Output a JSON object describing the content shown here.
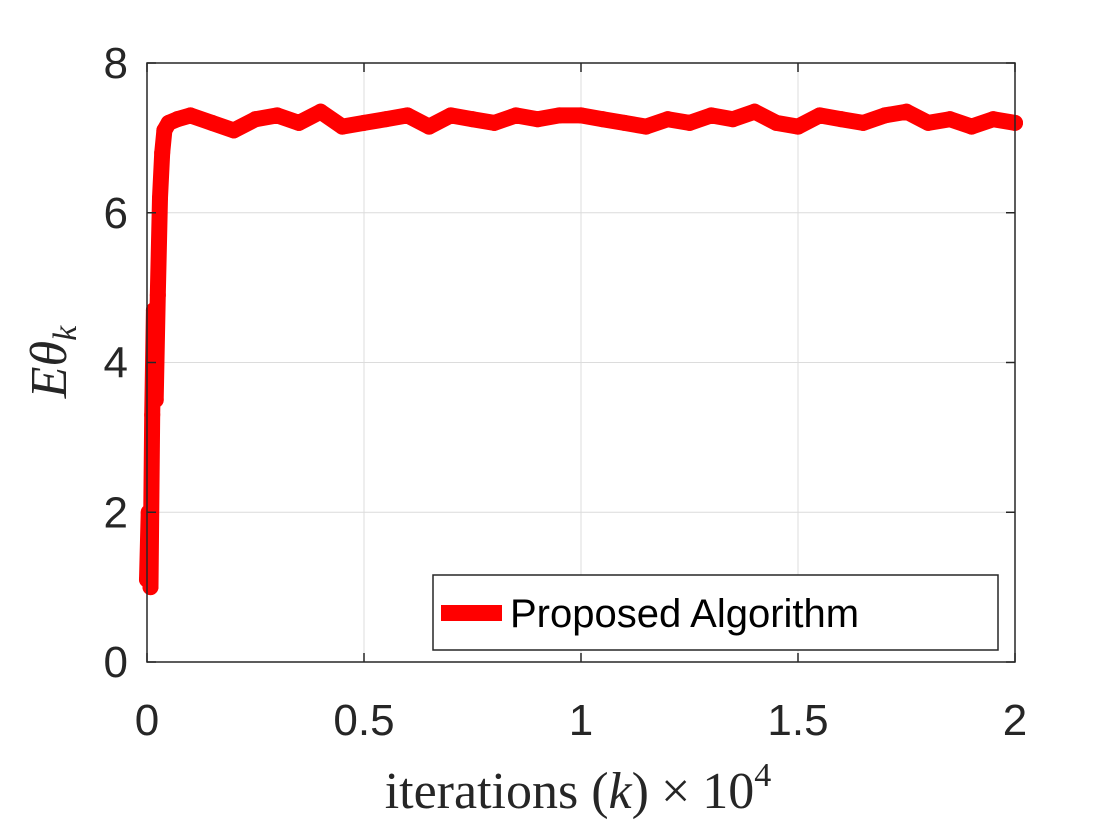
{
  "chart_data": {
    "type": "line",
    "xlabel_prefix": "iterations ",
    "xlabel_paren_open": "(",
    "xlabel_var": "k",
    "xlabel_paren_close": ")",
    "xlabel_times": "×",
    "xlabel_base": "10",
    "xlabel_exp": "4",
    "ylabel_main": "E",
    "ylabel_theta": "θ",
    "ylabel_sub": "k",
    "xlim": [
      0,
      2
    ],
    "ylim": [
      0,
      8
    ],
    "x_ticks": [
      0,
      0.5,
      1,
      1.5,
      2
    ],
    "x_tick_labels": [
      "0",
      "0.5",
      "1",
      "1.5",
      "2"
    ],
    "y_ticks": [
      0,
      2,
      4,
      6,
      8
    ],
    "y_tick_labels": [
      "0",
      "2",
      "4",
      "6",
      "8"
    ],
    "grid": true,
    "legend_position": "bottom-right",
    "series": [
      {
        "name": "Proposed Algorithm",
        "color": "#ff0000",
        "x": [
          0,
          0.004,
          0.008,
          0.012,
          0.016,
          0.02,
          0.025,
          0.03,
          0.035,
          0.04,
          0.05,
          0.07,
          0.1,
          0.15,
          0.2,
          0.25,
          0.3,
          0.35,
          0.4,
          0.45,
          0.5,
          0.55,
          0.6,
          0.65,
          0.7,
          0.75,
          0.8,
          0.85,
          0.9,
          0.95,
          1.0,
          1.05,
          1.1,
          1.15,
          1.2,
          1.25,
          1.3,
          1.35,
          1.4,
          1.45,
          1.5,
          1.55,
          1.6,
          1.65,
          1.7,
          1.75,
          1.8,
          1.85,
          1.9,
          1.95,
          2.0
        ],
        "y": [
          1.1,
          2.0,
          1.0,
          3.3,
          4.7,
          3.5,
          4.9,
          6.2,
          6.8,
          7.1,
          7.2,
          7.25,
          7.3,
          7.2,
          7.1,
          7.25,
          7.3,
          7.2,
          7.35,
          7.15,
          7.2,
          7.25,
          7.3,
          7.15,
          7.3,
          7.25,
          7.2,
          7.3,
          7.25,
          7.3,
          7.3,
          7.25,
          7.2,
          7.15,
          7.25,
          7.2,
          7.3,
          7.25,
          7.35,
          7.2,
          7.15,
          7.3,
          7.25,
          7.2,
          7.3,
          7.35,
          7.2,
          7.25,
          7.15,
          7.25,
          7.2
        ]
      }
    ]
  }
}
